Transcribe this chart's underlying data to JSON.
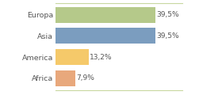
{
  "categories": [
    "Europa",
    "Asia",
    "America",
    "Africa"
  ],
  "values": [
    39.5,
    39.5,
    13.2,
    7.9
  ],
  "labels": [
    "39,5%",
    "39,5%",
    "13,2%",
    "7,9%"
  ],
  "bar_colors": [
    "#b5c98a",
    "#7b9dbf",
    "#f5c96a",
    "#e8a87c"
  ],
  "background_color": "#ffffff",
  "xlim": [
    0,
    50
  ],
  "label_fontsize": 6.5,
  "tick_fontsize": 6.8,
  "bar_height": 0.75
}
